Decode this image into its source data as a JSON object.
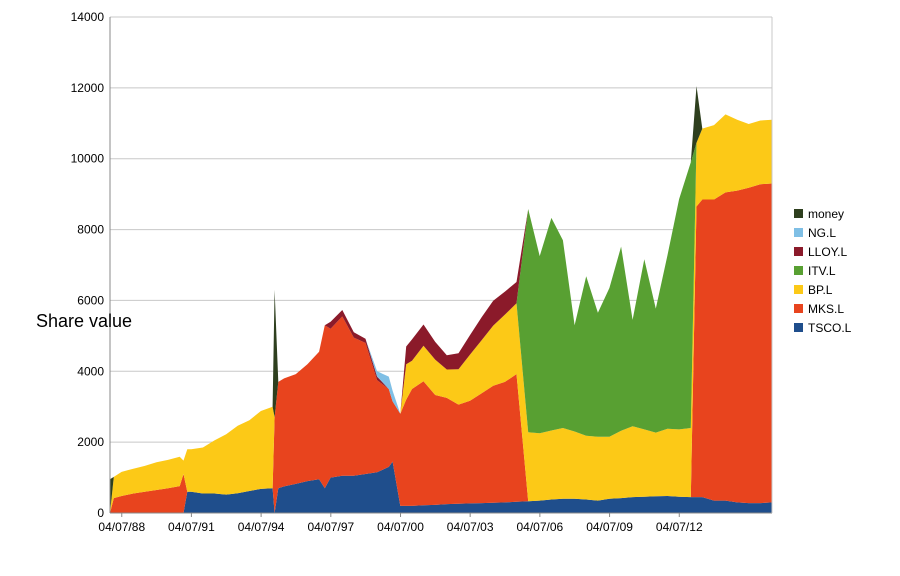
{
  "chart_data": {
    "type": "area",
    "stacked": true,
    "title": "",
    "xlabel": "",
    "ylabel": "Share value",
    "ylim": [
      0,
      14000
    ],
    "yticks": [
      0,
      2000,
      4000,
      6000,
      8000,
      10000,
      12000,
      14000
    ],
    "xlim": [
      "1988-01-01",
      "2016-07-01"
    ],
    "xticks": [
      "04/07/88",
      "04/07/91",
      "04/07/94",
      "04/07/97",
      "04/07/00",
      "04/07/03",
      "04/07/06",
      "04/07/09",
      "04/07/12"
    ],
    "grid": "horizontal",
    "legend_position": "right",
    "x": [
      "1988-01-01",
      "1988-03-01",
      "1988-07-01",
      "1989-01-01",
      "1989-07-01",
      "1990-01-01",
      "1990-07-01",
      "1991-01-01",
      "1991-03-01",
      "1991-05-01",
      "1991-07-01",
      "1992-01-01",
      "1992-07-01",
      "1993-01-01",
      "1993-07-01",
      "1994-01-01",
      "1994-07-01",
      "1995-01-01",
      "1995-02-01",
      "1995-04-01",
      "1995-07-01",
      "1996-01-01",
      "1996-07-01",
      "1997-01-01",
      "1997-04-01",
      "1997-07-01",
      "1998-01-01",
      "1998-07-01",
      "1999-01-01",
      "1999-07-01",
      "2000-01-01",
      "2000-03-01",
      "2000-07-01",
      "2000-10-01",
      "2001-01-01",
      "2001-07-01",
      "2002-01-01",
      "2002-07-01",
      "2003-01-01",
      "2003-07-01",
      "2004-01-01",
      "2004-07-01",
      "2005-01-01",
      "2005-07-01",
      "2006-01-01",
      "2006-07-01",
      "2007-01-01",
      "2007-07-01",
      "2008-01-01",
      "2008-07-01",
      "2009-01-01",
      "2009-07-01",
      "2010-01-01",
      "2010-07-01",
      "2011-01-01",
      "2011-07-01",
      "2012-01-01",
      "2012-07-01",
      "2013-01-01",
      "2013-04-01",
      "2013-07-01",
      "2014-01-01",
      "2014-07-01",
      "2015-01-01",
      "2015-07-01",
      "2016-01-01",
      "2016-07-01"
    ],
    "series": [
      {
        "name": "TSCO.L",
        "color": "#1f4e8c",
        "values": [
          0,
          0,
          0,
          0,
          0,
          0,
          0,
          0,
          0,
          600,
          600,
          550,
          550,
          520,
          560,
          620,
          680,
          700,
          0,
          700,
          750,
          820,
          900,
          950,
          700,
          1000,
          1050,
          1050,
          1100,
          1150,
          1300,
          1450,
          200,
          200,
          200,
          220,
          230,
          250,
          260,
          270,
          280,
          290,
          300,
          320,
          330,
          350,
          380,
          400,
          400,
          380,
          350,
          400,
          420,
          450,
          460,
          470,
          480,
          460,
          450,
          450,
          450,
          350,
          350,
          300,
          280,
          280,
          300
        ]
      },
      {
        "name": "MKS.L",
        "color": "#e8441e",
        "values": [
          0,
          420,
          480,
          550,
          600,
          650,
          700,
          760,
          1100,
          0,
          0,
          0,
          0,
          0,
          0,
          0,
          0,
          0,
          2700,
          3000,
          3050,
          3100,
          3300,
          3600,
          4600,
          4200,
          4500,
          3900,
          3700,
          2600,
          2200,
          1700,
          2600,
          3000,
          3300,
          3500,
          3100,
          3000,
          2800,
          2900,
          3100,
          3300,
          3400,
          3600,
          0,
          0,
          0,
          0,
          0,
          0,
          0,
          0,
          0,
          0,
          0,
          0,
          0,
          0,
          0,
          8200,
          8400,
          8500,
          8700,
          8800,
          8900,
          9000,
          9000
        ]
      },
      {
        "name": "BP.L",
        "color": "#fcc917",
        "values": [
          0,
          600,
          680,
          700,
          730,
          780,
          800,
          830,
          380,
          1200,
          1200,
          1300,
          1500,
          1700,
          1900,
          2000,
          2200,
          2300,
          0,
          0,
          0,
          0,
          0,
          0,
          0,
          0,
          0,
          0,
          0,
          0,
          0,
          0,
          0,
          1000,
          800,
          1000,
          1000,
          800,
          1000,
          1300,
          1500,
          1700,
          1900,
          2000,
          1950,
          1900,
          1950,
          2000,
          1900,
          1800,
          1800,
          1750,
          1900,
          2000,
          1900,
          1800,
          1900,
          1900,
          1950,
          1800,
          2000,
          2100,
          2200,
          2000,
          1800,
          1800,
          1800
        ]
      },
      {
        "name": "ITV.L",
        "color": "#58a032",
        "values": [
          0,
          0,
          0,
          0,
          0,
          0,
          0,
          0,
          0,
          0,
          0,
          0,
          0,
          0,
          0,
          0,
          0,
          0,
          0,
          0,
          0,
          0,
          0,
          0,
          0,
          0,
          0,
          0,
          0,
          0,
          0,
          0,
          0,
          0,
          0,
          0,
          0,
          0,
          0,
          0,
          0,
          0,
          0,
          0,
          6300,
          5000,
          6000,
          5300,
          3000,
          4500,
          3500,
          4200,
          5200,
          3000,
          4800,
          3500,
          4900,
          6500,
          7500,
          0,
          0,
          0,
          0,
          0,
          0,
          0,
          0
        ]
      },
      {
        "name": "LLOY.L",
        "color": "#8b1a2a",
        "values": [
          0,
          0,
          0,
          0,
          0,
          0,
          0,
          0,
          0,
          0,
          0,
          0,
          0,
          0,
          0,
          0,
          0,
          0,
          0,
          0,
          0,
          0,
          0,
          0,
          0,
          200,
          180,
          150,
          120,
          100,
          0,
          0,
          0,
          500,
          600,
          600,
          500,
          400,
          450,
          550,
          650,
          700,
          650,
          600,
          0,
          0,
          0,
          0,
          0,
          0,
          0,
          0,
          0,
          0,
          0,
          0,
          0,
          0,
          0,
          0,
          0,
          0,
          0,
          0,
          0,
          0,
          0
        ]
      },
      {
        "name": "NG.L",
        "color": "#7fbfe5",
        "values": [
          0,
          0,
          0,
          0,
          0,
          0,
          0,
          0,
          0,
          0,
          0,
          0,
          0,
          0,
          0,
          0,
          0,
          0,
          0,
          0,
          0,
          0,
          0,
          0,
          0,
          0,
          0,
          0,
          0,
          150,
          350,
          300,
          0,
          0,
          0,
          0,
          0,
          0,
          0,
          0,
          0,
          0,
          0,
          0,
          0,
          0,
          0,
          0,
          0,
          0,
          0,
          0,
          0,
          0,
          0,
          0,
          0,
          0,
          0,
          0,
          0,
          0,
          0,
          0,
          0,
          0,
          0
        ]
      },
      {
        "name": "money",
        "color": "#2e3f1e",
        "values": [
          950,
          0,
          0,
          0,
          0,
          0,
          0,
          0,
          0,
          0,
          0,
          0,
          0,
          0,
          0,
          0,
          0,
          0,
          3600,
          0,
          0,
          0,
          0,
          0,
          0,
          0,
          0,
          0,
          0,
          0,
          0,
          0,
          0,
          0,
          0,
          0,
          0,
          0,
          0,
          0,
          0,
          0,
          0,
          0,
          0,
          0,
          0,
          0,
          0,
          0,
          0,
          0,
          0,
          0,
          0,
          0,
          0,
          0,
          0,
          1600,
          0,
          0,
          0,
          0,
          0,
          0,
          0
        ]
      }
    ],
    "legend_order": [
      "money",
      "NG.L",
      "LLOY.L",
      "ITV.L",
      "BP.L",
      "MKS.L",
      "TSCO.L"
    ]
  }
}
